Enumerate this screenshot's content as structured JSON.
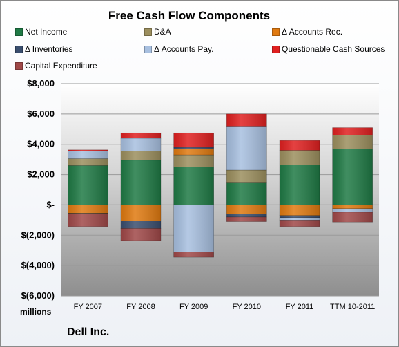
{
  "chart_data": {
    "type": "bar",
    "stacked": true,
    "title": "Free Cash Flow Components",
    "company": "Dell Inc.",
    "units_label": "millions",
    "categories": [
      "FY 2007",
      "FY 2008",
      "FY 2009",
      "FY 2010",
      "FY 2011",
      "TTM 10-2011"
    ],
    "ylim": [
      -6000,
      8000
    ],
    "yticks": [
      8000,
      6000,
      4000,
      2000,
      0,
      -2000,
      -4000,
      -6000
    ],
    "ytick_labels": [
      "$8,000",
      "$6,000",
      "$4,000",
      "$2,000",
      "$-",
      "$(2,000)",
      "$(4,000)",
      "$(6,000)"
    ],
    "grid": true,
    "legend_position": "top",
    "series": [
      {
        "name": "Net Income",
        "color": "#1f7a45",
        "values": [
          2600,
          2950,
          2500,
          1450,
          2650,
          3700
        ]
      },
      {
        "name": "D&A",
        "color": "#9c8f5e",
        "values": [
          450,
          600,
          800,
          850,
          950,
          900
        ]
      },
      {
        "name": "Δ Accounts Rec.",
        "color": "#e07a10",
        "values": [
          -550,
          -1050,
          400,
          -600,
          -700,
          -250
        ]
      },
      {
        "name": "Δ Inventories",
        "color": "#3a4e6e",
        "values": [
          -30,
          -500,
          100,
          -200,
          -150,
          -30
        ]
      },
      {
        "name": "Δ Accounts Pay.",
        "color": "#a8c0e0",
        "values": [
          500,
          850,
          -3100,
          2850,
          -150,
          -200
        ]
      },
      {
        "name": "Questionable Cash Sources",
        "color": "#e02020",
        "values": [
          80,
          350,
          950,
          850,
          650,
          500
        ]
      },
      {
        "name": "Capital Expenditure",
        "color": "#a04848",
        "values": [
          -850,
          -800,
          -350,
          -300,
          -430,
          -650
        ]
      }
    ]
  }
}
